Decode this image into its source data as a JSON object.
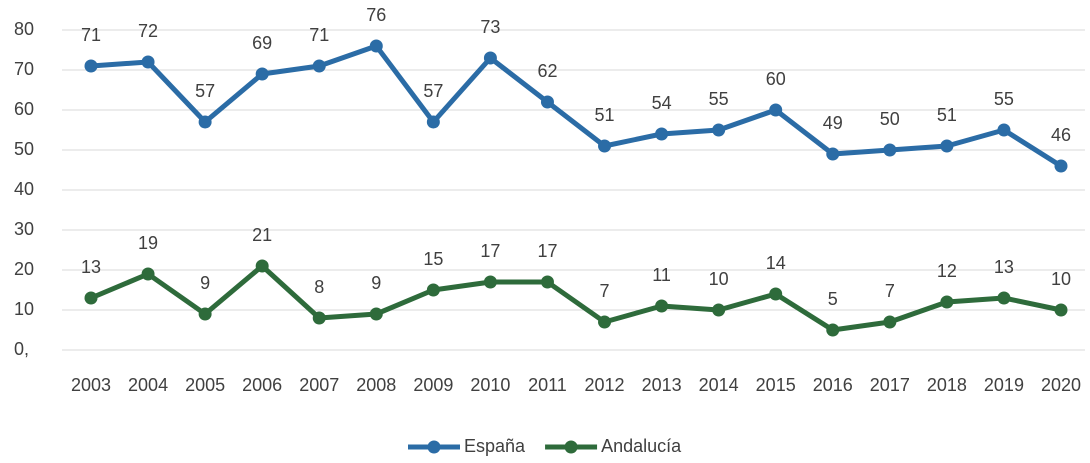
{
  "chart_data": {
    "type": "line",
    "categories": [
      "2003",
      "2004",
      "2005",
      "2006",
      "2007",
      "2008",
      "2009",
      "2010",
      "2011",
      "2012",
      "2013",
      "2014",
      "2015",
      "2016",
      "2017",
      "2018",
      "2019",
      "2020"
    ],
    "series": [
      {
        "name": "España",
        "color": "#2b6ca6",
        "values": [
          71,
          72,
          57,
          69,
          71,
          76,
          57,
          73,
          62,
          51,
          54,
          55,
          60,
          49,
          50,
          51,
          55,
          46
        ]
      },
      {
        "name": "Andalucía",
        "color": "#2e6b3b",
        "values": [
          13,
          19,
          9,
          21,
          8,
          9,
          15,
          17,
          17,
          7,
          11,
          10,
          14,
          5,
          7,
          12,
          13,
          10
        ]
      }
    ],
    "ylim": [
      0,
      80
    ],
    "yticks": [
      {
        "value": 0,
        "label": "0,"
      },
      10,
      20,
      30,
      40,
      50,
      60,
      70,
      80
    ],
    "grid": true,
    "legend": "bottom"
  }
}
